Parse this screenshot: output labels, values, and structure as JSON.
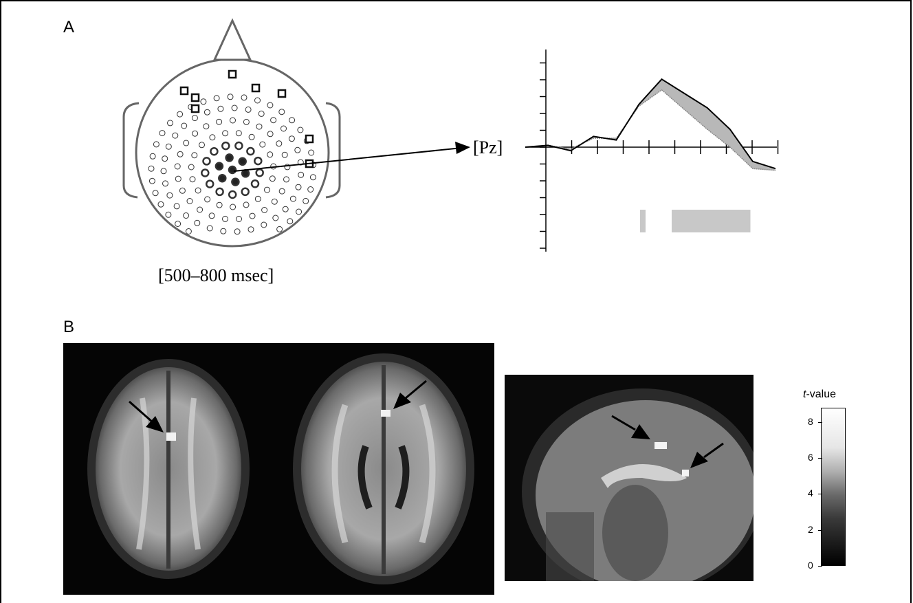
{
  "panels": {
    "a_label": "A",
    "b_label": "B"
  },
  "scalp": {
    "time_range": "[500–800 msec]",
    "electrode_label": "[Pz]"
  },
  "colorbar": {
    "title_italic": "t",
    "title_rest": "-value",
    "ticks": [
      "8",
      "6",
      "4",
      "2",
      "0"
    ],
    "range": [
      0,
      8.8
    ]
  },
  "chart_data": {
    "type": "line",
    "series": [
      {
        "values": [
          0,
          0.1,
          -0.2,
          0.6,
          0.4,
          2.4,
          3.8,
          3.0,
          2.2,
          1.0,
          -0.8,
          -1.2
        ]
      },
      {
        "values": [
          0,
          0.1,
          -0.1,
          0.5,
          0.5,
          2.3,
          3.2,
          2.1,
          1.0,
          0.0,
          -1.2,
          -1.3
        ]
      }
    ],
    "significant_windows": [
      [
        2,
        3
      ],
      [
        4,
        7
      ]
    ],
    "grid": false
  },
  "colors": {
    "highlight_gray": "#c8c8c8",
    "background": "#ffffff"
  }
}
